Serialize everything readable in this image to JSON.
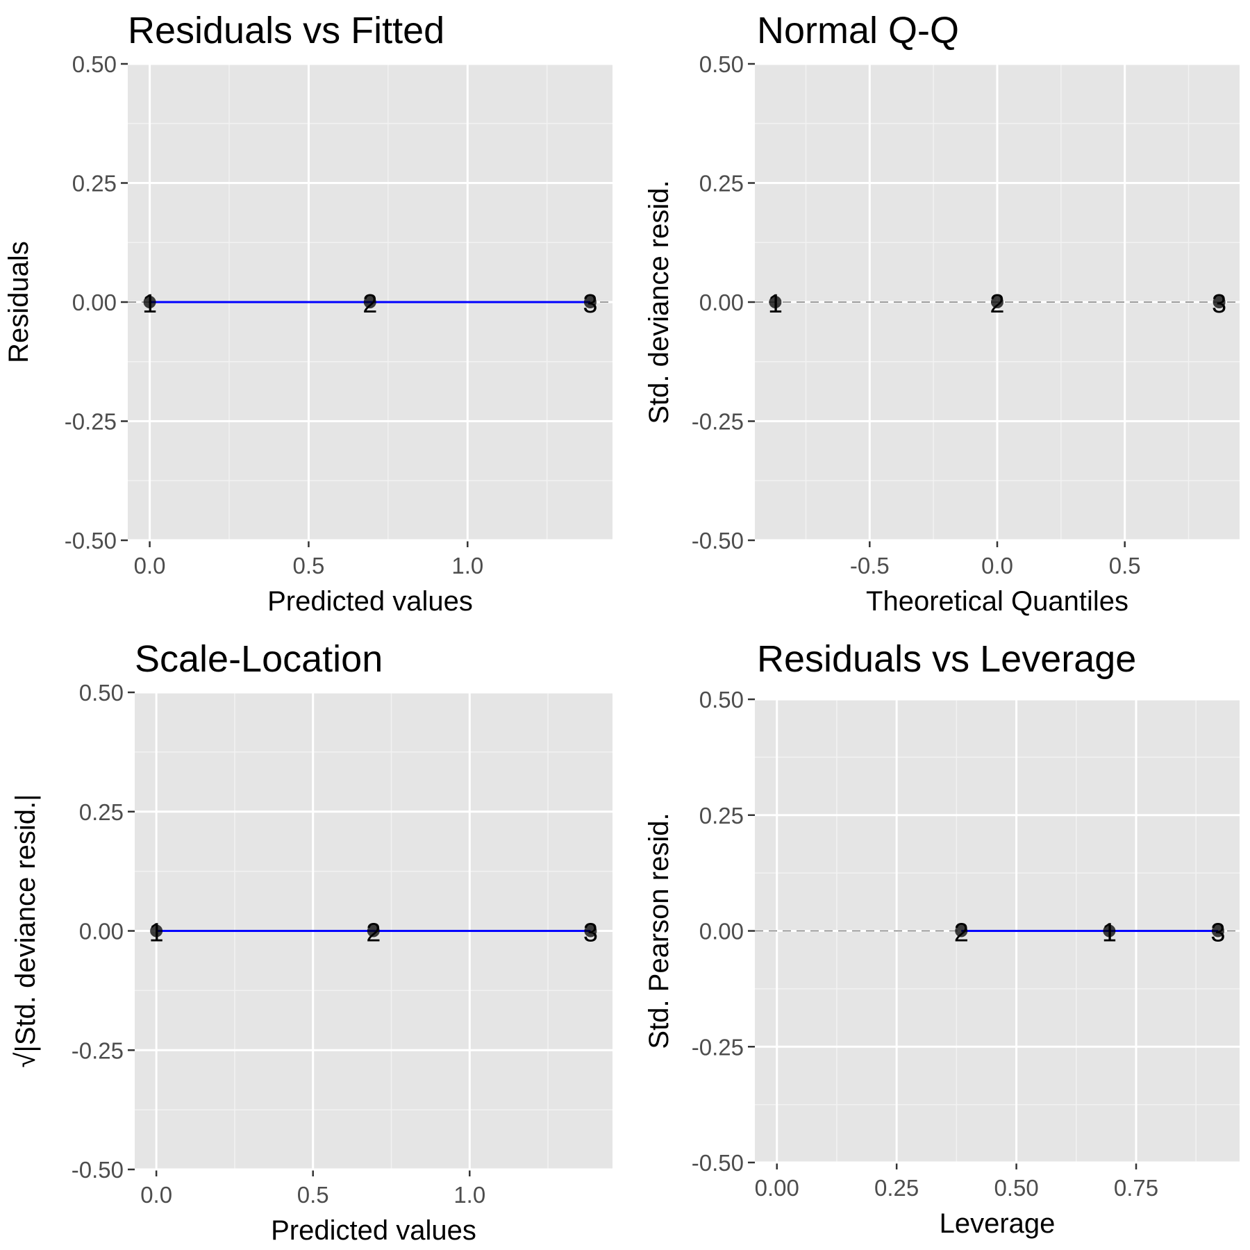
{
  "chart_data": [
    {
      "type": "scatter",
      "title": "Residuals vs Fitted",
      "xlabel": "Predicted values",
      "ylabel": "Residuals",
      "xlim": [
        -0.069,
        1.456
      ],
      "ylim": [
        -0.5,
        0.5
      ],
      "xticks": [
        {
          "v": 0.0,
          "label": "0.0"
        },
        {
          "v": 0.5,
          "label": "0.5"
        },
        {
          "v": 1.0,
          "label": "1.0"
        }
      ],
      "yticks": [
        {
          "v": 0.5,
          "label": "0.50"
        },
        {
          "v": 0.25,
          "label": "0.25"
        },
        {
          "v": 0.0,
          "label": "0.00"
        },
        {
          "v": -0.25,
          "label": "-0.25"
        },
        {
          "v": -0.5,
          "label": "-0.50"
        }
      ],
      "grid": true,
      "points": [
        {
          "label": "1",
          "x": 0.0,
          "y": 0.0
        },
        {
          "label": "2",
          "x": 0.693,
          "y": 0.0
        },
        {
          "label": "3",
          "x": 1.386,
          "y": 0.0
        }
      ],
      "reference_line": {
        "y": 0,
        "style": "dashed",
        "color": "#7f7f7f"
      },
      "smooth_line": {
        "color": "#0000ff",
        "x": [
          0.0,
          1.386
        ],
        "y": [
          0.0,
          0.0
        ]
      }
    },
    {
      "type": "scatter",
      "title": "Normal Q-Q",
      "xlabel": "Theoretical Quantiles",
      "ylabel": "Std. deviance resid.",
      "xlim": [
        -0.95,
        0.95
      ],
      "ylim": [
        -0.5,
        0.5
      ],
      "xticks": [
        {
          "v": -0.5,
          "label": "-0.5"
        },
        {
          "v": 0.0,
          "label": "0.0"
        },
        {
          "v": 0.5,
          "label": "0.5"
        }
      ],
      "yticks": [
        {
          "v": 0.5,
          "label": "0.50"
        },
        {
          "v": 0.25,
          "label": "0.25"
        },
        {
          "v": 0.0,
          "label": "0.00"
        },
        {
          "v": -0.25,
          "label": "-0.25"
        },
        {
          "v": -0.5,
          "label": "-0.50"
        }
      ],
      "grid": true,
      "points": [
        {
          "label": "1",
          "x": -0.87,
          "y": 0.0
        },
        {
          "label": "2",
          "x": 0.0,
          "y": 0.0
        },
        {
          "label": "3",
          "x": 0.87,
          "y": 0.0
        }
      ],
      "reference_line": {
        "y": 0,
        "style": "dashed",
        "color": "#7f7f7f"
      }
    },
    {
      "type": "scatter",
      "title": "Scale-Location",
      "xlabel": "Predicted values",
      "ylabel": "√|Std. deviance resid.|",
      "xlim": [
        -0.069,
        1.456
      ],
      "ylim": [
        -0.5,
        0.5
      ],
      "xticks": [
        {
          "v": 0.0,
          "label": "0.0"
        },
        {
          "v": 0.5,
          "label": "0.5"
        },
        {
          "v": 1.0,
          "label": "1.0"
        }
      ],
      "yticks": [
        {
          "v": 0.5,
          "label": "0.50"
        },
        {
          "v": 0.25,
          "label": "0.25"
        },
        {
          "v": 0.0,
          "label": "0.00"
        },
        {
          "v": -0.25,
          "label": "-0.25"
        },
        {
          "v": -0.5,
          "label": "-0.50"
        }
      ],
      "grid": true,
      "points": [
        {
          "label": "1",
          "x": 0.0,
          "y": 0.0
        },
        {
          "label": "2",
          "x": 0.693,
          "y": 0.0
        },
        {
          "label": "3",
          "x": 1.386,
          "y": 0.0
        }
      ],
      "smooth_line": {
        "color": "#0000ff",
        "x": [
          0.0,
          1.386
        ],
        "y": [
          0.0,
          0.0
        ]
      }
    },
    {
      "type": "scatter",
      "title": "Residuals vs Leverage",
      "xlabel": "Leverage",
      "ylabel": "Std. Pearson resid.",
      "xlim": [
        -0.046,
        0.966
      ],
      "ylim": [
        -0.5,
        0.5
      ],
      "xticks": [
        {
          "v": 0.0,
          "label": "0.00"
        },
        {
          "v": 0.25,
          "label": "0.25"
        },
        {
          "v": 0.5,
          "label": "0.50"
        },
        {
          "v": 0.75,
          "label": "0.75"
        }
      ],
      "yticks": [
        {
          "v": 0.5,
          "label": "0.50"
        },
        {
          "v": 0.25,
          "label": "0.25"
        },
        {
          "v": 0.0,
          "label": "0.00"
        },
        {
          "v": -0.25,
          "label": "-0.25"
        },
        {
          "v": -0.5,
          "label": "-0.50"
        }
      ],
      "grid": true,
      "points": [
        {
          "label": "2",
          "x": 0.385,
          "y": 0.0
        },
        {
          "label": "1",
          "x": 0.694,
          "y": 0.0
        },
        {
          "label": "3",
          "x": 0.921,
          "y": 0.0
        }
      ],
      "reference_line": {
        "y": 0,
        "style": "dashed",
        "color": "#7f7f7f"
      },
      "smooth_line": {
        "color": "#0000ff",
        "x": [
          0.385,
          0.921
        ],
        "y": [
          0.0,
          0.0
        ]
      }
    }
  ]
}
